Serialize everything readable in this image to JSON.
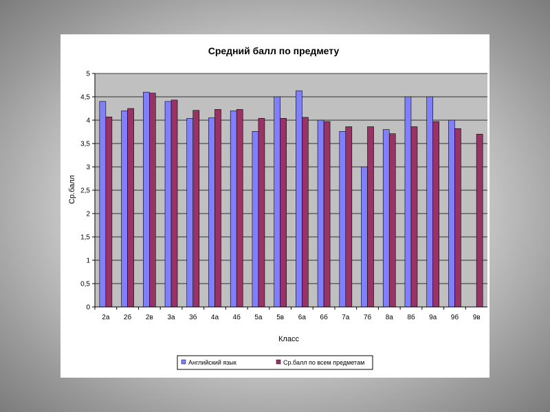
{
  "chart_data": {
    "type": "bar",
    "title": "Средний балл по предмету",
    "xlabel": "Класс",
    "ylabel": "Ср.балл",
    "ylim": [
      0,
      5
    ],
    "yticks": [
      "0",
      "0,5",
      "1",
      "1,5",
      "2",
      "2,5",
      "3",
      "3,5",
      "4",
      "4,5",
      "5"
    ],
    "categories": [
      "2а",
      "2б",
      "2в",
      "3а",
      "3б",
      "4а",
      "4б",
      "5а",
      "5в",
      "6а",
      "6б",
      "7а",
      "7б",
      "8а",
      "8б",
      "9а",
      "9б",
      "9в"
    ],
    "series": [
      {
        "name": "Английский язык",
        "color": "#8080ff",
        "values": [
          4.4,
          4.2,
          4.6,
          4.4,
          4.04,
          4.05,
          4.2,
          3.76,
          4.5,
          4.63,
          4.0,
          3.76,
          3.0,
          3.8,
          4.5,
          4.5,
          4.0,
          null
        ]
      },
      {
        "name": "Ср.балл по всем предметам",
        "color": "#993366",
        "values": [
          4.07,
          4.25,
          4.58,
          4.43,
          4.21,
          4.23,
          4.23,
          4.04,
          4.04,
          4.06,
          3.97,
          3.86,
          3.86,
          3.71,
          3.86,
          3.97,
          3.82,
          3.7
        ]
      }
    ],
    "plot_background": "#c0c0c0",
    "grid": true,
    "legend_position": "bottom"
  }
}
